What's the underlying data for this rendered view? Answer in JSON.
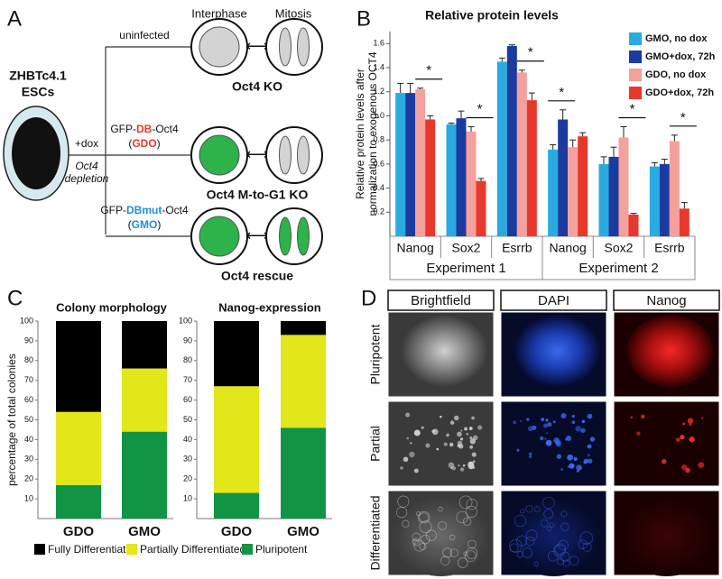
{
  "panel_labels": [
    "A",
    "B",
    "C",
    "D"
  ],
  "diagram": {
    "cell_line": [
      "ZHBTc4.1",
      "ESCs"
    ],
    "treatment": "+dox",
    "treatment_note": [
      "Oct4",
      "depletion"
    ],
    "stage_headers": [
      "Interphase",
      "Mitosis"
    ],
    "rows": [
      {
        "construct": [
          {
            "text": "uninfected"
          }
        ],
        "interphase_color": "#d3d3d3",
        "mitosis_color": "#d3d3d3",
        "outcome": "Oct4 KO"
      },
      {
        "construct": [
          {
            "text": "GFP-"
          },
          {
            "text": "DB",
            "color": "#e8382c"
          },
          {
            "text": "-Oct4"
          }
        ],
        "tag": [
          {
            "text": "("
          },
          {
            "text": "GDO",
            "color": "#e8382c"
          },
          {
            "text": ")"
          }
        ],
        "interphase_color": "#2db34a",
        "mitosis_color": "#d3d3d3",
        "outcome": "Oct4 M-to-G1 KO"
      },
      {
        "construct": [
          {
            "text": "GFP-"
          },
          {
            "text": "DBmut",
            "color": "#1f8fd6"
          },
          {
            "text": "-Oct4"
          }
        ],
        "tag": [
          {
            "text": "("
          },
          {
            "text": "GMO",
            "color": "#1f8fd6"
          },
          {
            "text": ")"
          }
        ],
        "interphase_color": "#2db34a",
        "mitosis_color": "#2db34a",
        "outcome": "Oct4 rescue"
      }
    ]
  },
  "chart_data": [
    {
      "type": "grouped-bar",
      "title": "Relative protein levels",
      "ylabel": [
        "Relative protein levels after",
        "normalization to exogenous OCT4"
      ],
      "categories": [
        "Nanog",
        "Sox2",
        "Esrrb",
        "Nanog",
        "Sox2",
        "Esrrb"
      ],
      "groups": [
        "Experiment 1",
        "Experiment 2"
      ],
      "ylim": [
        0,
        1.7
      ],
      "yticks": [
        0.2,
        0.4,
        0.6,
        0.8,
        {
          "value": 1,
          "label": "1.0"
        },
        1.2,
        1.4,
        1.6
      ],
      "legend": "upper right",
      "annotations": [
        "*",
        "*",
        "*",
        "*",
        "*",
        "*"
      ],
      "series": [
        {
          "name": "GMO, no dox",
          "color": "#29abe2",
          "values": [
            1.19,
            0.93,
            1.45,
            0.72,
            0.6,
            0.58
          ],
          "errors": [
            0.08,
            0.01,
            0.03,
            0.04,
            0.06,
            0.03
          ]
        },
        {
          "name": "GMO+dox, 72h",
          "color": "#1b3b9e",
          "values": [
            1.19,
            0.98,
            1.58,
            0.97,
            0.66,
            0.6
          ],
          "errors": [
            0.08,
            0.06,
            0.01,
            0.08,
            0.08,
            0.04
          ]
        },
        {
          "name": "GDO, no dox",
          "color": "#f4a09c",
          "values": [
            1.22,
            0.87,
            1.36,
            0.74,
            0.82,
            0.79
          ],
          "errors": [
            0.01,
            0.04,
            0.02,
            0.06,
            0.09,
            0.05
          ]
        },
        {
          "name": "GDO+dox, 72h",
          "color": "#e8382c",
          "values": [
            0.97,
            0.46,
            1.13,
            0.83,
            0.18,
            0.23
          ],
          "errors": [
            0.03,
            0.02,
            0.06,
            0.03,
            0.01,
            0.05
          ]
        }
      ]
    },
    {
      "type": "stacked-bar",
      "ylabel": "percentage of total colonies",
      "ylim": [
        0,
        100
      ],
      "yticks": [
        10,
        20,
        30,
        40,
        50,
        60,
        70,
        80,
        90,
        100
      ],
      "legend": "bottom",
      "series": [
        {
          "name": "Fully Differentiated",
          "color": "#000000"
        },
        {
          "name": "Partially Differentiated",
          "color": "#e3e619"
        },
        {
          "name": "Pluripotent",
          "color": "#119443"
        }
      ],
      "subplots": [
        {
          "title": "Colony morphology",
          "categories": [
            "GDO",
            "GMO"
          ],
          "category_colors": [
            "#e8382c",
            "#1b3b9e"
          ],
          "values": [
            [
              46,
              24
            ],
            [
              37,
              32
            ],
            [
              17,
              44
            ]
          ]
        },
        {
          "title": "Nanog-expression",
          "categories": [
            "GDO",
            "GMO"
          ],
          "category_colors": [
            "#e8382c",
            "#1b3b9e"
          ],
          "values": [
            [
              33,
              7
            ],
            [
              54,
              47
            ],
            [
              13,
              46
            ]
          ]
        }
      ]
    }
  ],
  "micrographs": {
    "columns": [
      "Brightfield",
      "DAPI",
      "Nanog"
    ],
    "rows": [
      "Pluripotent",
      "Partial",
      "Differentiated"
    ]
  }
}
